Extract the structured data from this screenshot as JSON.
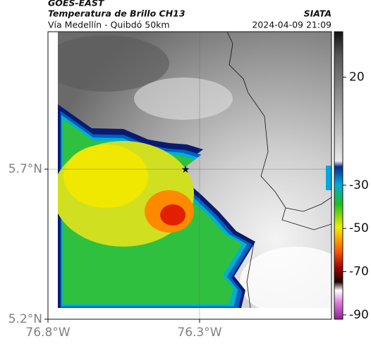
{
  "header": {
    "satellite": "GOES-EAST",
    "title": "Temperatura de Brillo CH13",
    "subtitle": "Vía Medellín - Quibdó 50km",
    "source": "SIATA",
    "timestamp": "2024-04-09 21:09"
  },
  "map": {
    "xlim": [
      -76.8,
      -75.865
    ],
    "ylim": [
      5.2,
      6.158
    ],
    "xticks": [
      {
        "value": -76.8,
        "label": "76.8°W"
      },
      {
        "value": -76.3,
        "label": "76.3°W"
      }
    ],
    "yticks": [
      {
        "value": 5.7,
        "label": "5.7°N"
      },
      {
        "value": 5.2,
        "label": "5.2°N"
      }
    ]
  },
  "colorbar": {
    "lim": [
      41,
      -92
    ],
    "ticks": [
      20,
      -30,
      -50,
      -70,
      -90
    ]
  }
}
